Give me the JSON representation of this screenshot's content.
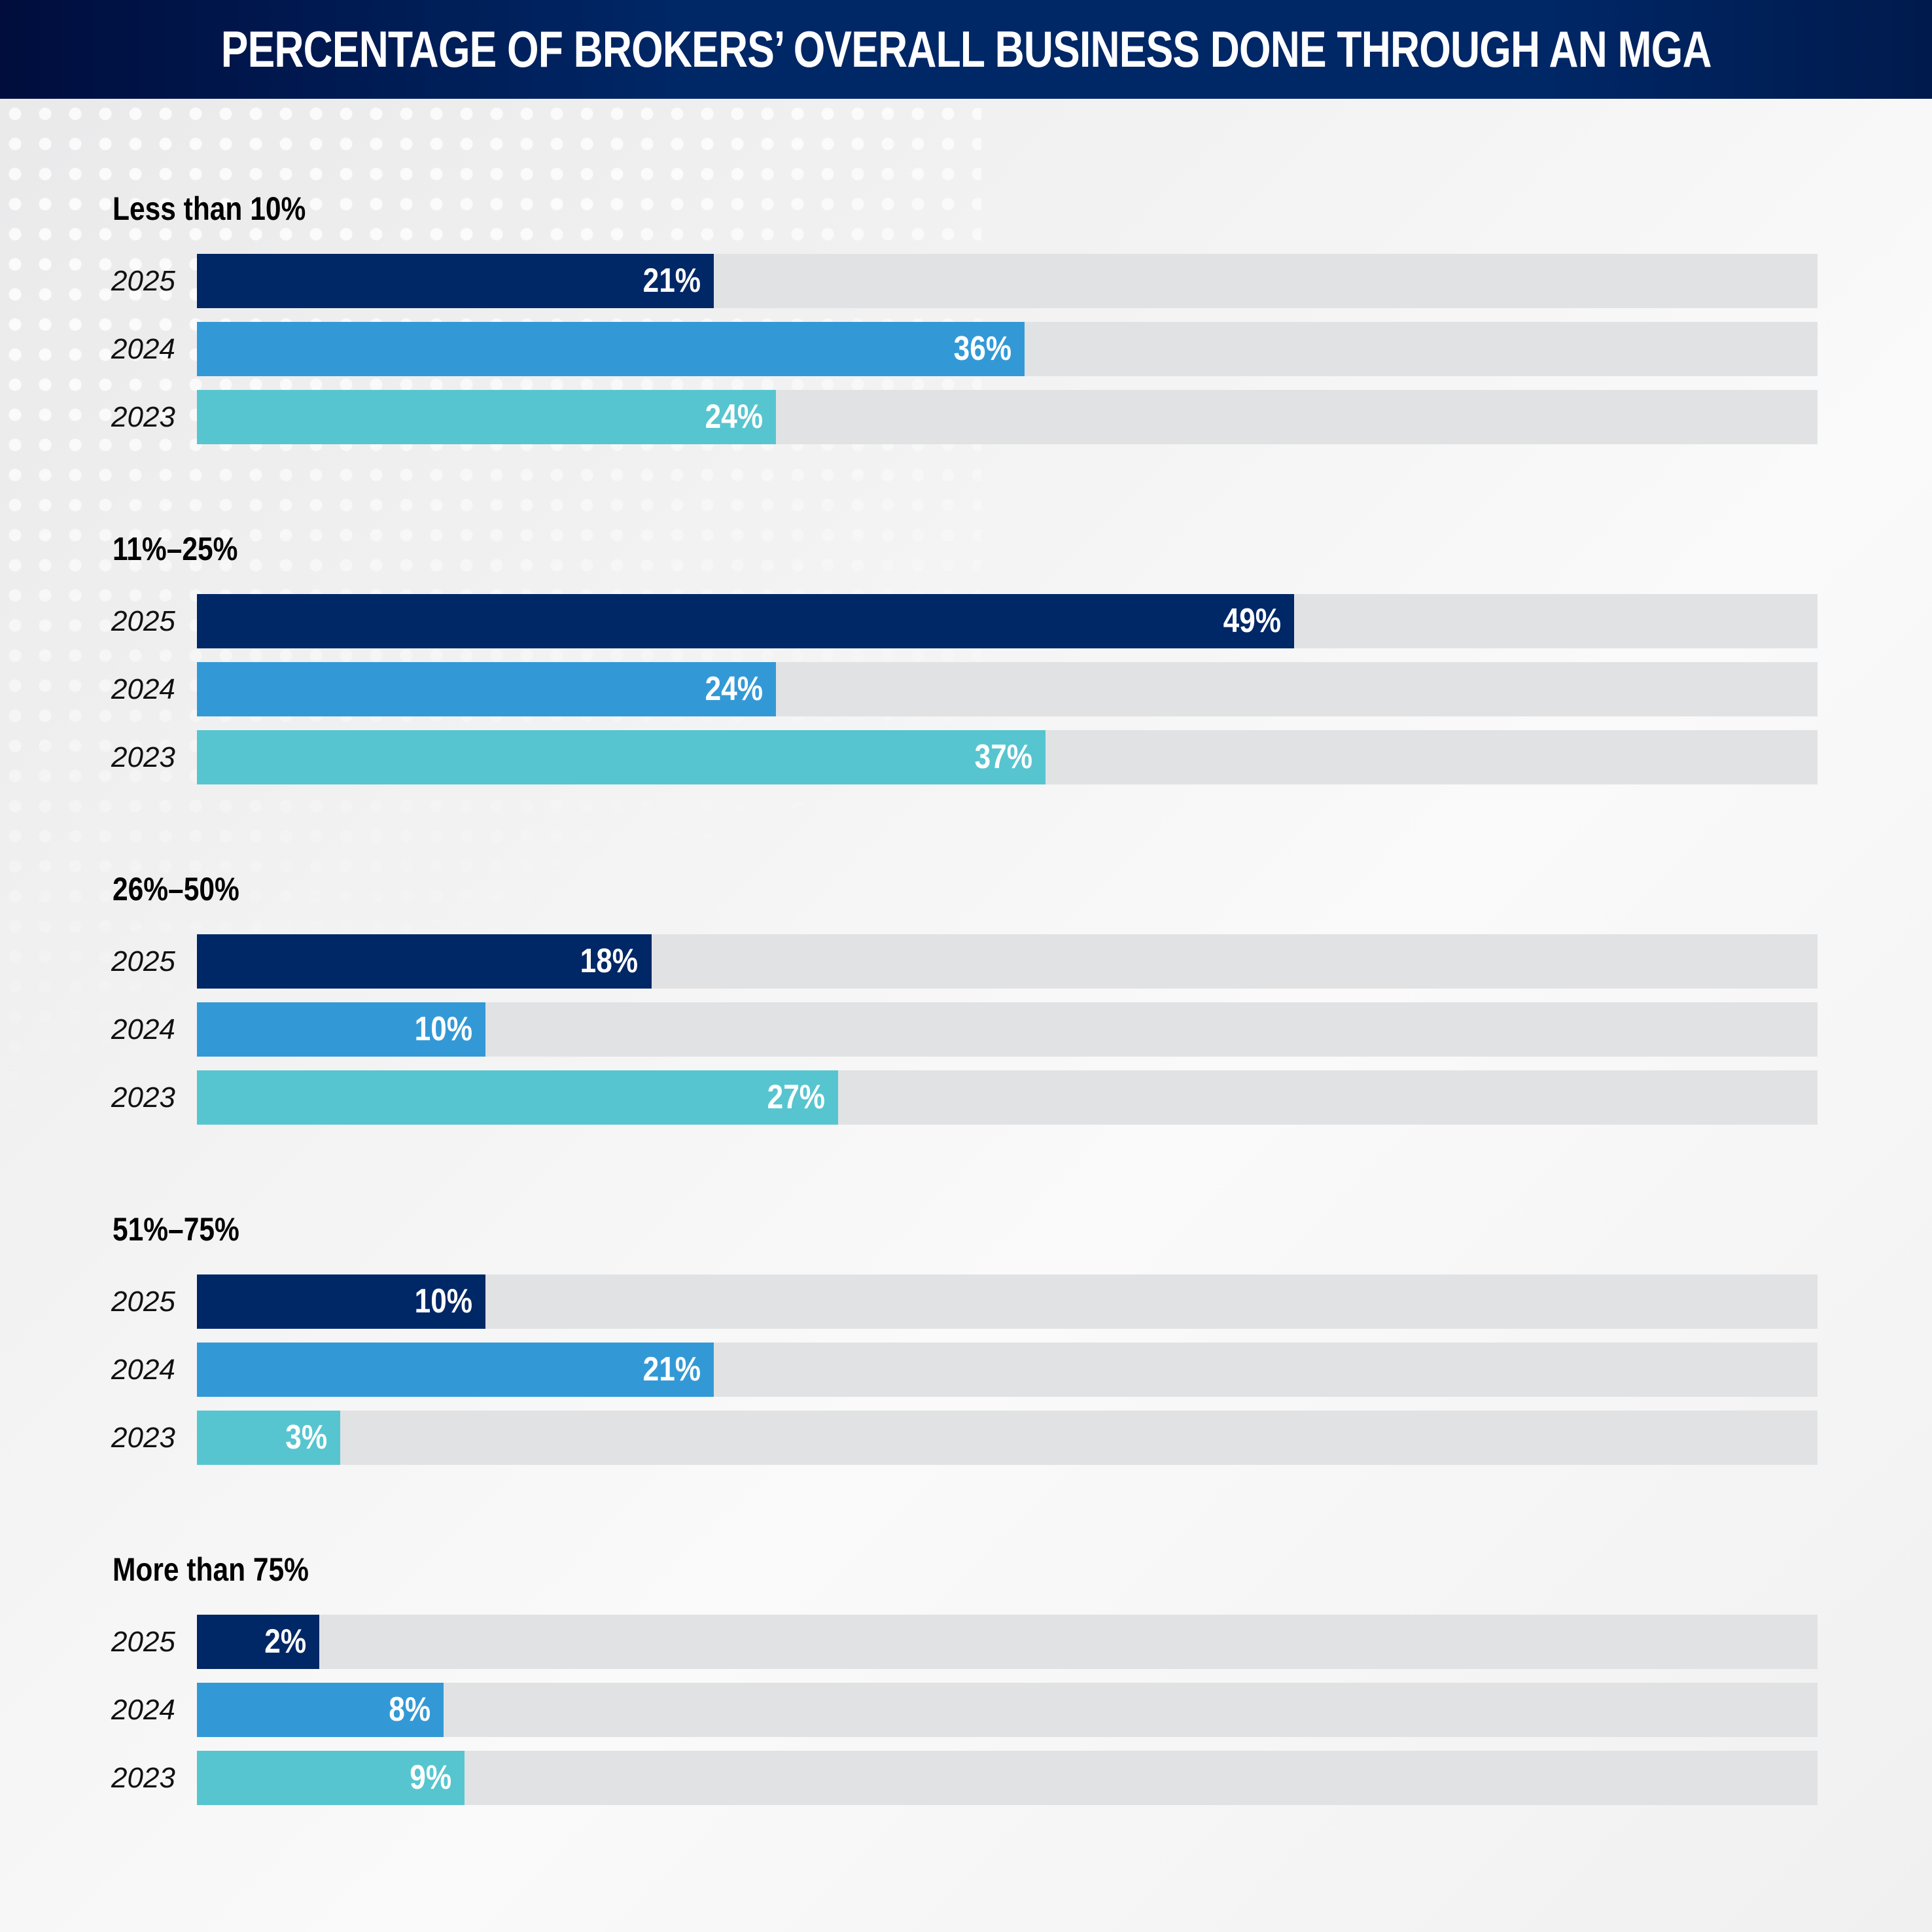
{
  "chart_data": {
    "type": "bar",
    "title": "PERCENTAGE OF BROKERS’ OVERALL BUSINESS DONE THROUGH AN MGA",
    "series_names": [
      "2025",
      "2024",
      "2023"
    ],
    "colors": {
      "2025": "#002766",
      "2024": "#3399d6",
      "2023": "#57c5cf",
      "track": "#e1e2e4"
    },
    "groups": [
      {
        "label": "Less than 10%",
        "rows": [
          {
            "year": "2025",
            "value": 21,
            "label": "21%"
          },
          {
            "year": "2024",
            "value": 36,
            "label": "36%"
          },
          {
            "year": "2023",
            "value": 24,
            "label": "24%"
          }
        ]
      },
      {
        "label": "11%–25%",
        "rows": [
          {
            "year": "2025",
            "value": 49,
            "label": "49%"
          },
          {
            "year": "2024",
            "value": 24,
            "label": "24%"
          },
          {
            "year": "2023",
            "value": 37,
            "label": "37%"
          }
        ]
      },
      {
        "label": "26%–50%",
        "rows": [
          {
            "year": "2025",
            "value": 18,
            "label": "18%"
          },
          {
            "year": "2024",
            "value": 10,
            "label": "10%"
          },
          {
            "year": "2023",
            "value": 27,
            "label": "27%"
          }
        ]
      },
      {
        "label": "51%–75%",
        "rows": [
          {
            "year": "2025",
            "value": 10,
            "label": "10%"
          },
          {
            "year": "2024",
            "value": 21,
            "label": "21%"
          },
          {
            "year": "2023",
            "value": 3,
            "label": "3%"
          }
        ]
      },
      {
        "label": "More than 75%",
        "rows": [
          {
            "year": "2025",
            "value": 2,
            "label": "2%"
          },
          {
            "year": "2024",
            "value": 8,
            "label": "8%"
          },
          {
            "year": "2023",
            "value": 9,
            "label": "9%"
          }
        ]
      }
    ]
  }
}
